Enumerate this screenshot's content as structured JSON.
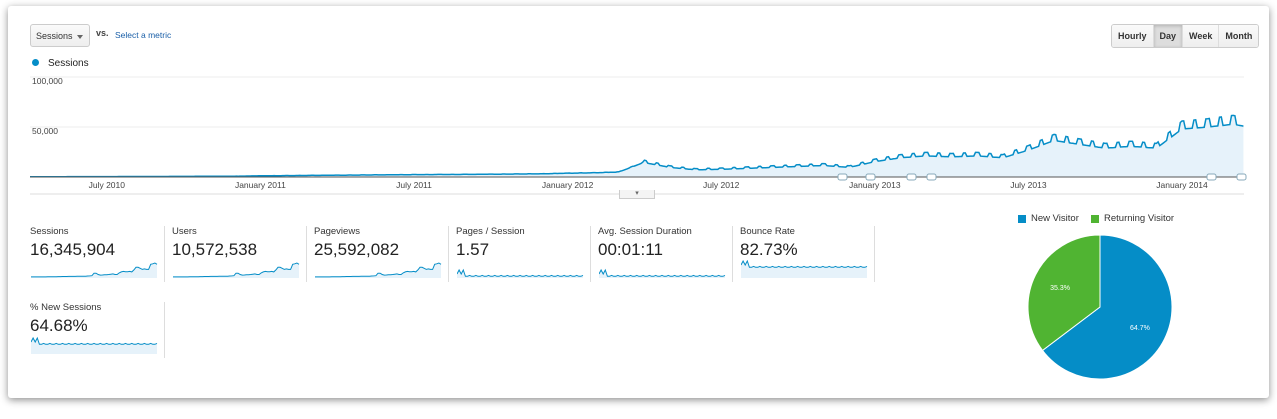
{
  "toolbar": {
    "metric_select": "Sessions",
    "vs_label": "vs.",
    "select_metric_link": "Select a metric",
    "granularity": [
      {
        "label": "Hourly",
        "active": false
      },
      {
        "label": "Day",
        "active": true
      },
      {
        "label": "Week",
        "active": false
      },
      {
        "label": "Month",
        "active": false
      }
    ]
  },
  "colors": {
    "sessions": "#058dc7",
    "new_visitor": "#058dc7",
    "returning_visitor": "#50b432"
  },
  "chart_data": [
    {
      "type": "area",
      "legend": "Sessions",
      "y_ticks": [
        "100,000",
        "50,000"
      ],
      "ylim": [
        0,
        100000
      ],
      "x_ticks": [
        "July 2010",
        "January 2011",
        "July 2011",
        "January 2012",
        "July 2012",
        "January 2013",
        "July 2013",
        "January 2014"
      ],
      "x": [
        "2010-04",
        "2010-05",
        "2010-06",
        "2010-07",
        "2010-08",
        "2010-09",
        "2010-10",
        "2010-11",
        "2010-12",
        "2011-01",
        "2011-02",
        "2011-03",
        "2011-04",
        "2011-05",
        "2011-06",
        "2011-07",
        "2011-08",
        "2011-09",
        "2011-10",
        "2011-11",
        "2011-12",
        "2012-01",
        "2012-02",
        "2012-03",
        "2012-04",
        "2012-05",
        "2012-06",
        "2012-07",
        "2012-08",
        "2012-09",
        "2012-10",
        "2012-11",
        "2012-12",
        "2013-01",
        "2013-02",
        "2013-03",
        "2013-04",
        "2013-05",
        "2013-06",
        "2013-07",
        "2013-08",
        "2013-09",
        "2013-10",
        "2013-11",
        "2013-12",
        "2014-01",
        "2014-02",
        "2014-03",
        "2014-04"
      ],
      "values": [
        300,
        300,
        400,
        400,
        500,
        500,
        600,
        700,
        800,
        1200,
        1400,
        1600,
        1800,
        2000,
        2200,
        2400,
        2500,
        2600,
        2800,
        3000,
        3200,
        3800,
        4200,
        5000,
        15000,
        10000,
        7500,
        8000,
        9000,
        10000,
        11000,
        12000,
        10000,
        16000,
        20000,
        22000,
        21000,
        22000,
        20000,
        28000,
        38000,
        34000,
        30000,
        32000,
        30000,
        50000,
        52000,
        55000,
        50000
      ]
    },
    {
      "type": "pie",
      "legend": [
        "New Visitor",
        "Returning Visitor"
      ],
      "values": [
        64.7,
        35.3
      ],
      "labels": [
        "64.7%",
        "35.3%"
      ]
    }
  ],
  "metrics": [
    {
      "label": "Sessions",
      "value": "16,345,904"
    },
    {
      "label": "Users",
      "value": "10,572,538"
    },
    {
      "label": "Pageviews",
      "value": "25,592,082"
    },
    {
      "label": "Pages / Session",
      "value": "1.57"
    },
    {
      "label": "Avg. Session Duration",
      "value": "00:01:11"
    },
    {
      "label": "Bounce Rate",
      "value": "82.73%"
    },
    {
      "label": "% New Sessions",
      "value": "64.68%"
    }
  ]
}
